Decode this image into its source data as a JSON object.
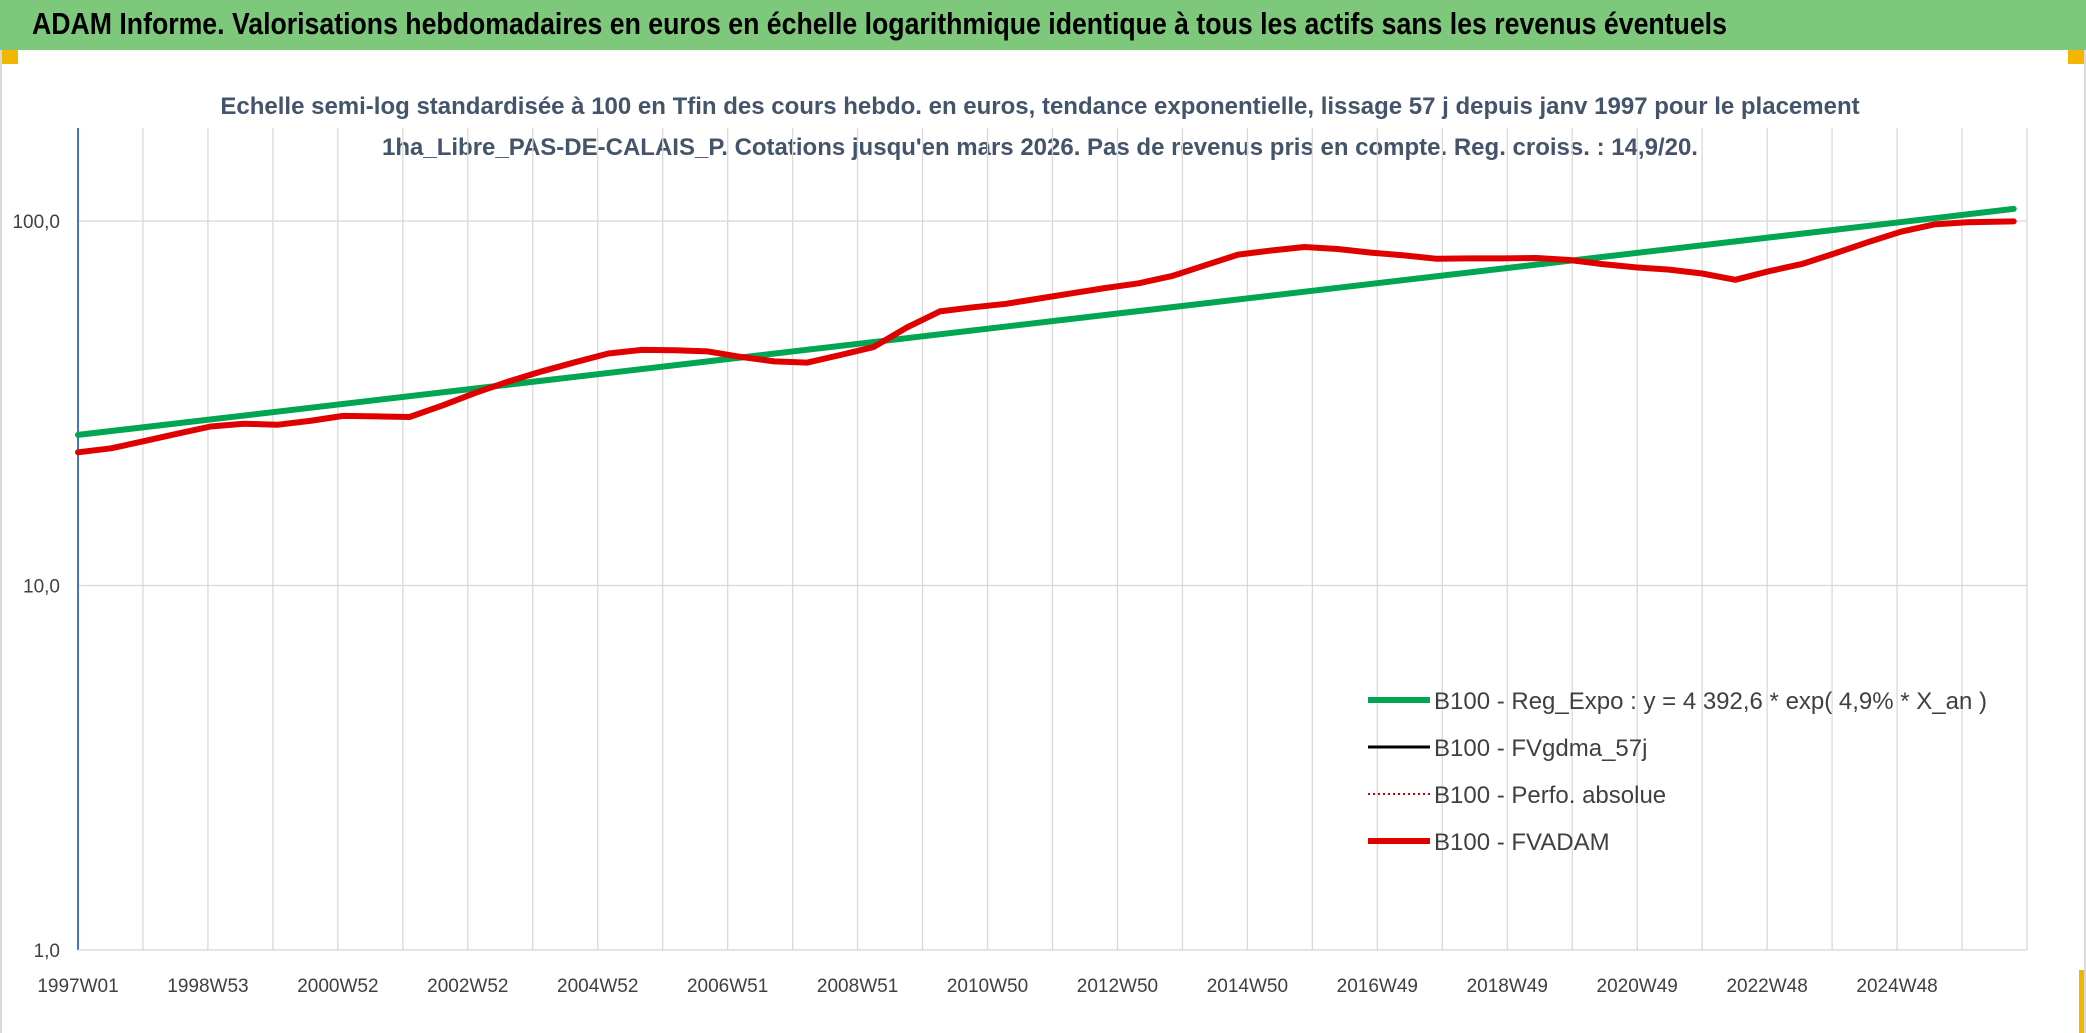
{
  "header": {
    "title": "ADAM Informe. Valorisations hebdomadaires en euros en échelle logarithmique identique à tous les actifs sans les revenus éventuels"
  },
  "colors": {
    "header_bg": "#7dc87a",
    "corner": "#f2b600",
    "trend": "#00a651",
    "fvgdma": "#000000",
    "perfo": "#c00000",
    "fvadam": "#e00000",
    "axis": "#4472c4",
    "grid": "#d9d9d9"
  },
  "chart_data": {
    "type": "line",
    "title": "Echelle semi-log standardisée à 100 en Tfin des cours hebdo. en euros, tendance exponentielle, lissage 57 j depuis janv 1997 pour le placement 1ha_Libre_PAS-DE-CALAIS_P. Cotations jusqu'en mars 2026. Pas de revenus pris en compte. Reg. croiss. : 14,9/20.",
    "xlabel": "",
    "ylabel": "",
    "y_scale": "log",
    "ylim": [
      1,
      180
    ],
    "y_ticks": [
      "1,0",
      "10,0",
      "100,0"
    ],
    "x_tick_labels": [
      "1997W01",
      "1998W53",
      "2000W52",
      "2002W52",
      "2004W52",
      "2006W51",
      "2008W51",
      "2010W50",
      "2012W50",
      "2014W50",
      "2016W49",
      "2018W49",
      "2020W49",
      "2022W48",
      "2024W48"
    ],
    "xlim": [
      1997.0,
      2026.4
    ],
    "grid": true,
    "legend_position": "right-bottom",
    "series": [
      {
        "name": "B100 - Reg_Expo : y = 4 392,6 * exp( 4,9% *  X_an )",
        "style": "solid-thick",
        "color": "#00a651",
        "x": [
          1997.0,
          2026.2
        ],
        "y": [
          25.9,
          108
        ]
      },
      {
        "name": "B100 - FVgdma_57j",
        "style": "solid-thin",
        "color": "#000000",
        "x": [],
        "y": []
      },
      {
        "name": "B100 - Perfo. absolue",
        "style": "dotted",
        "color": "#c00000",
        "x": [],
        "y": []
      },
      {
        "name": "B100 - FVADAM",
        "style": "solid-thick",
        "color": "#e00000",
        "x": [
          1997.0,
          1997.5,
          1998.0,
          1998.5,
          1999.0,
          1999.5,
          2000.0,
          2000.5,
          2001.0,
          2001.5,
          2002.0,
          2002.5,
          2003.0,
          2003.5,
          2004.0,
          2004.5,
          2005.0,
          2005.5,
          2006.0,
          2006.5,
          2007.0,
          2007.5,
          2008.0,
          2008.5,
          2009.0,
          2009.5,
          2010.0,
          2010.5,
          2011.0,
          2011.5,
          2012.0,
          2012.5,
          2013.0,
          2013.5,
          2014.0,
          2014.5,
          2015.0,
          2015.5,
          2016.0,
          2016.5,
          2017.0,
          2017.5,
          2018.0,
          2018.5,
          2019.0,
          2019.5,
          2020.0,
          2020.5,
          2021.0,
          2021.5,
          2022.0,
          2022.5,
          2023.0,
          2023.5,
          2024.0,
          2024.5,
          2025.0,
          2025.5,
          2026.2
        ],
        "y": [
          23.2,
          23.8,
          24.9,
          26.1,
          27.3,
          27.8,
          27.6,
          28.3,
          29.2,
          29.1,
          29.0,
          31.2,
          33.8,
          36.3,
          38.7,
          41.0,
          43.3,
          44.3,
          44.2,
          43.9,
          42.4,
          41.2,
          40.9,
          42.9,
          45.1,
          51.0,
          56.5,
          58.0,
          59.3,
          61.3,
          63.4,
          65.5,
          67.5,
          70.6,
          75.6,
          80.9,
          83.0,
          84.9,
          83.8,
          81.9,
          80.5,
          78.8,
          79.0,
          79.0,
          79.2,
          78.2,
          76.2,
          74.6,
          73.6,
          71.8,
          69.0,
          72.8,
          76.2,
          81.5,
          87.5,
          93.5,
          97.9,
          99.3,
          99.8
        ]
      }
    ]
  }
}
